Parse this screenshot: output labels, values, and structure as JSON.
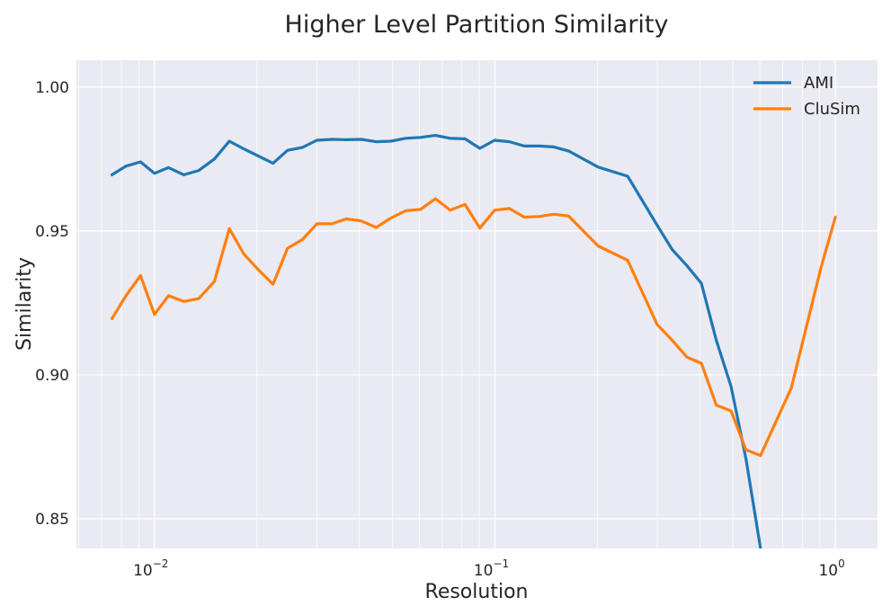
{
  "chart_data": {
    "type": "line",
    "title": "Higher Level Partition Similarity",
    "xlabel": "Resolution",
    "ylabel": "Similarity",
    "xscale": "log",
    "xlim": [
      0.0059,
      1.33
    ],
    "ylim": [
      0.8397,
      1.0093
    ],
    "grid": true,
    "legend_position": "top-right",
    "x_ticks": [
      {
        "value": 0.01,
        "base": "10",
        "exp": "−2"
      },
      {
        "value": 0.1,
        "base": "10",
        "exp": "−1"
      },
      {
        "value": 1,
        "base": "10",
        "exp": "0"
      }
    ],
    "y_ticks": [
      {
        "value": 0.85,
        "label": "0.85"
      },
      {
        "value": 0.9,
        "label": "0.90"
      },
      {
        "value": 0.95,
        "label": "0.95"
      },
      {
        "value": 1.0,
        "label": "1.00"
      }
    ],
    "x": [
      0.0075,
      0.00825,
      0.0091,
      0.01,
      0.011,
      0.0122,
      0.0135,
      0.015,
      0.0166,
      0.0183,
      0.0202,
      0.0223,
      0.0246,
      0.0272,
      0.03,
      0.0332,
      0.0367,
      0.0405,
      0.0448,
      0.0495,
      0.0547,
      0.0605,
      0.0669,
      0.0739,
      0.0817,
      0.0903,
      0.0998,
      0.1103,
      0.1219,
      0.1347,
      0.1489,
      0.1646,
      0.201,
      0.2454,
      0.2997,
      0.3318,
      0.3663,
      0.404,
      0.447,
      0.494,
      0.546,
      0.603,
      0.743,
      0.906,
      1.0
    ],
    "series": [
      {
        "name": "AMI",
        "color": "#1f77b4",
        "values": [
          0.9695,
          0.9725,
          0.974,
          0.97,
          0.972,
          0.9695,
          0.971,
          0.975,
          0.9812,
          0.9785,
          0.976,
          0.9735,
          0.978,
          0.979,
          0.9815,
          0.9818,
          0.9817,
          0.9818,
          0.981,
          0.9812,
          0.9822,
          0.9825,
          0.9832,
          0.9822,
          0.982,
          0.9787,
          0.9815,
          0.981,
          0.9795,
          0.9795,
          0.9792,
          0.9778,
          0.9722,
          0.969,
          0.952,
          0.9435,
          0.938,
          0.9318,
          0.912,
          0.896,
          0.871,
          0.8397,
          null,
          null,
          null
        ]
      },
      {
        "name": "CluSim",
        "color": "#ff7f0e",
        "values": [
          0.9195,
          0.9275,
          0.9345,
          0.921,
          0.9275,
          0.9255,
          0.9265,
          0.9325,
          0.9508,
          0.942,
          0.9365,
          0.9315,
          0.944,
          0.947,
          0.9525,
          0.9525,
          0.9542,
          0.9535,
          0.9512,
          0.9545,
          0.957,
          0.9575,
          0.9612,
          0.9572,
          0.9592,
          0.951,
          0.9572,
          0.9578,
          0.9548,
          0.955,
          0.9558,
          0.9552,
          0.9448,
          0.9398,
          0.9175,
          0.912,
          0.9062,
          0.904,
          0.8895,
          0.8875,
          0.874,
          0.872,
          0.8955,
          0.937,
          0.9548
        ]
      }
    ]
  }
}
